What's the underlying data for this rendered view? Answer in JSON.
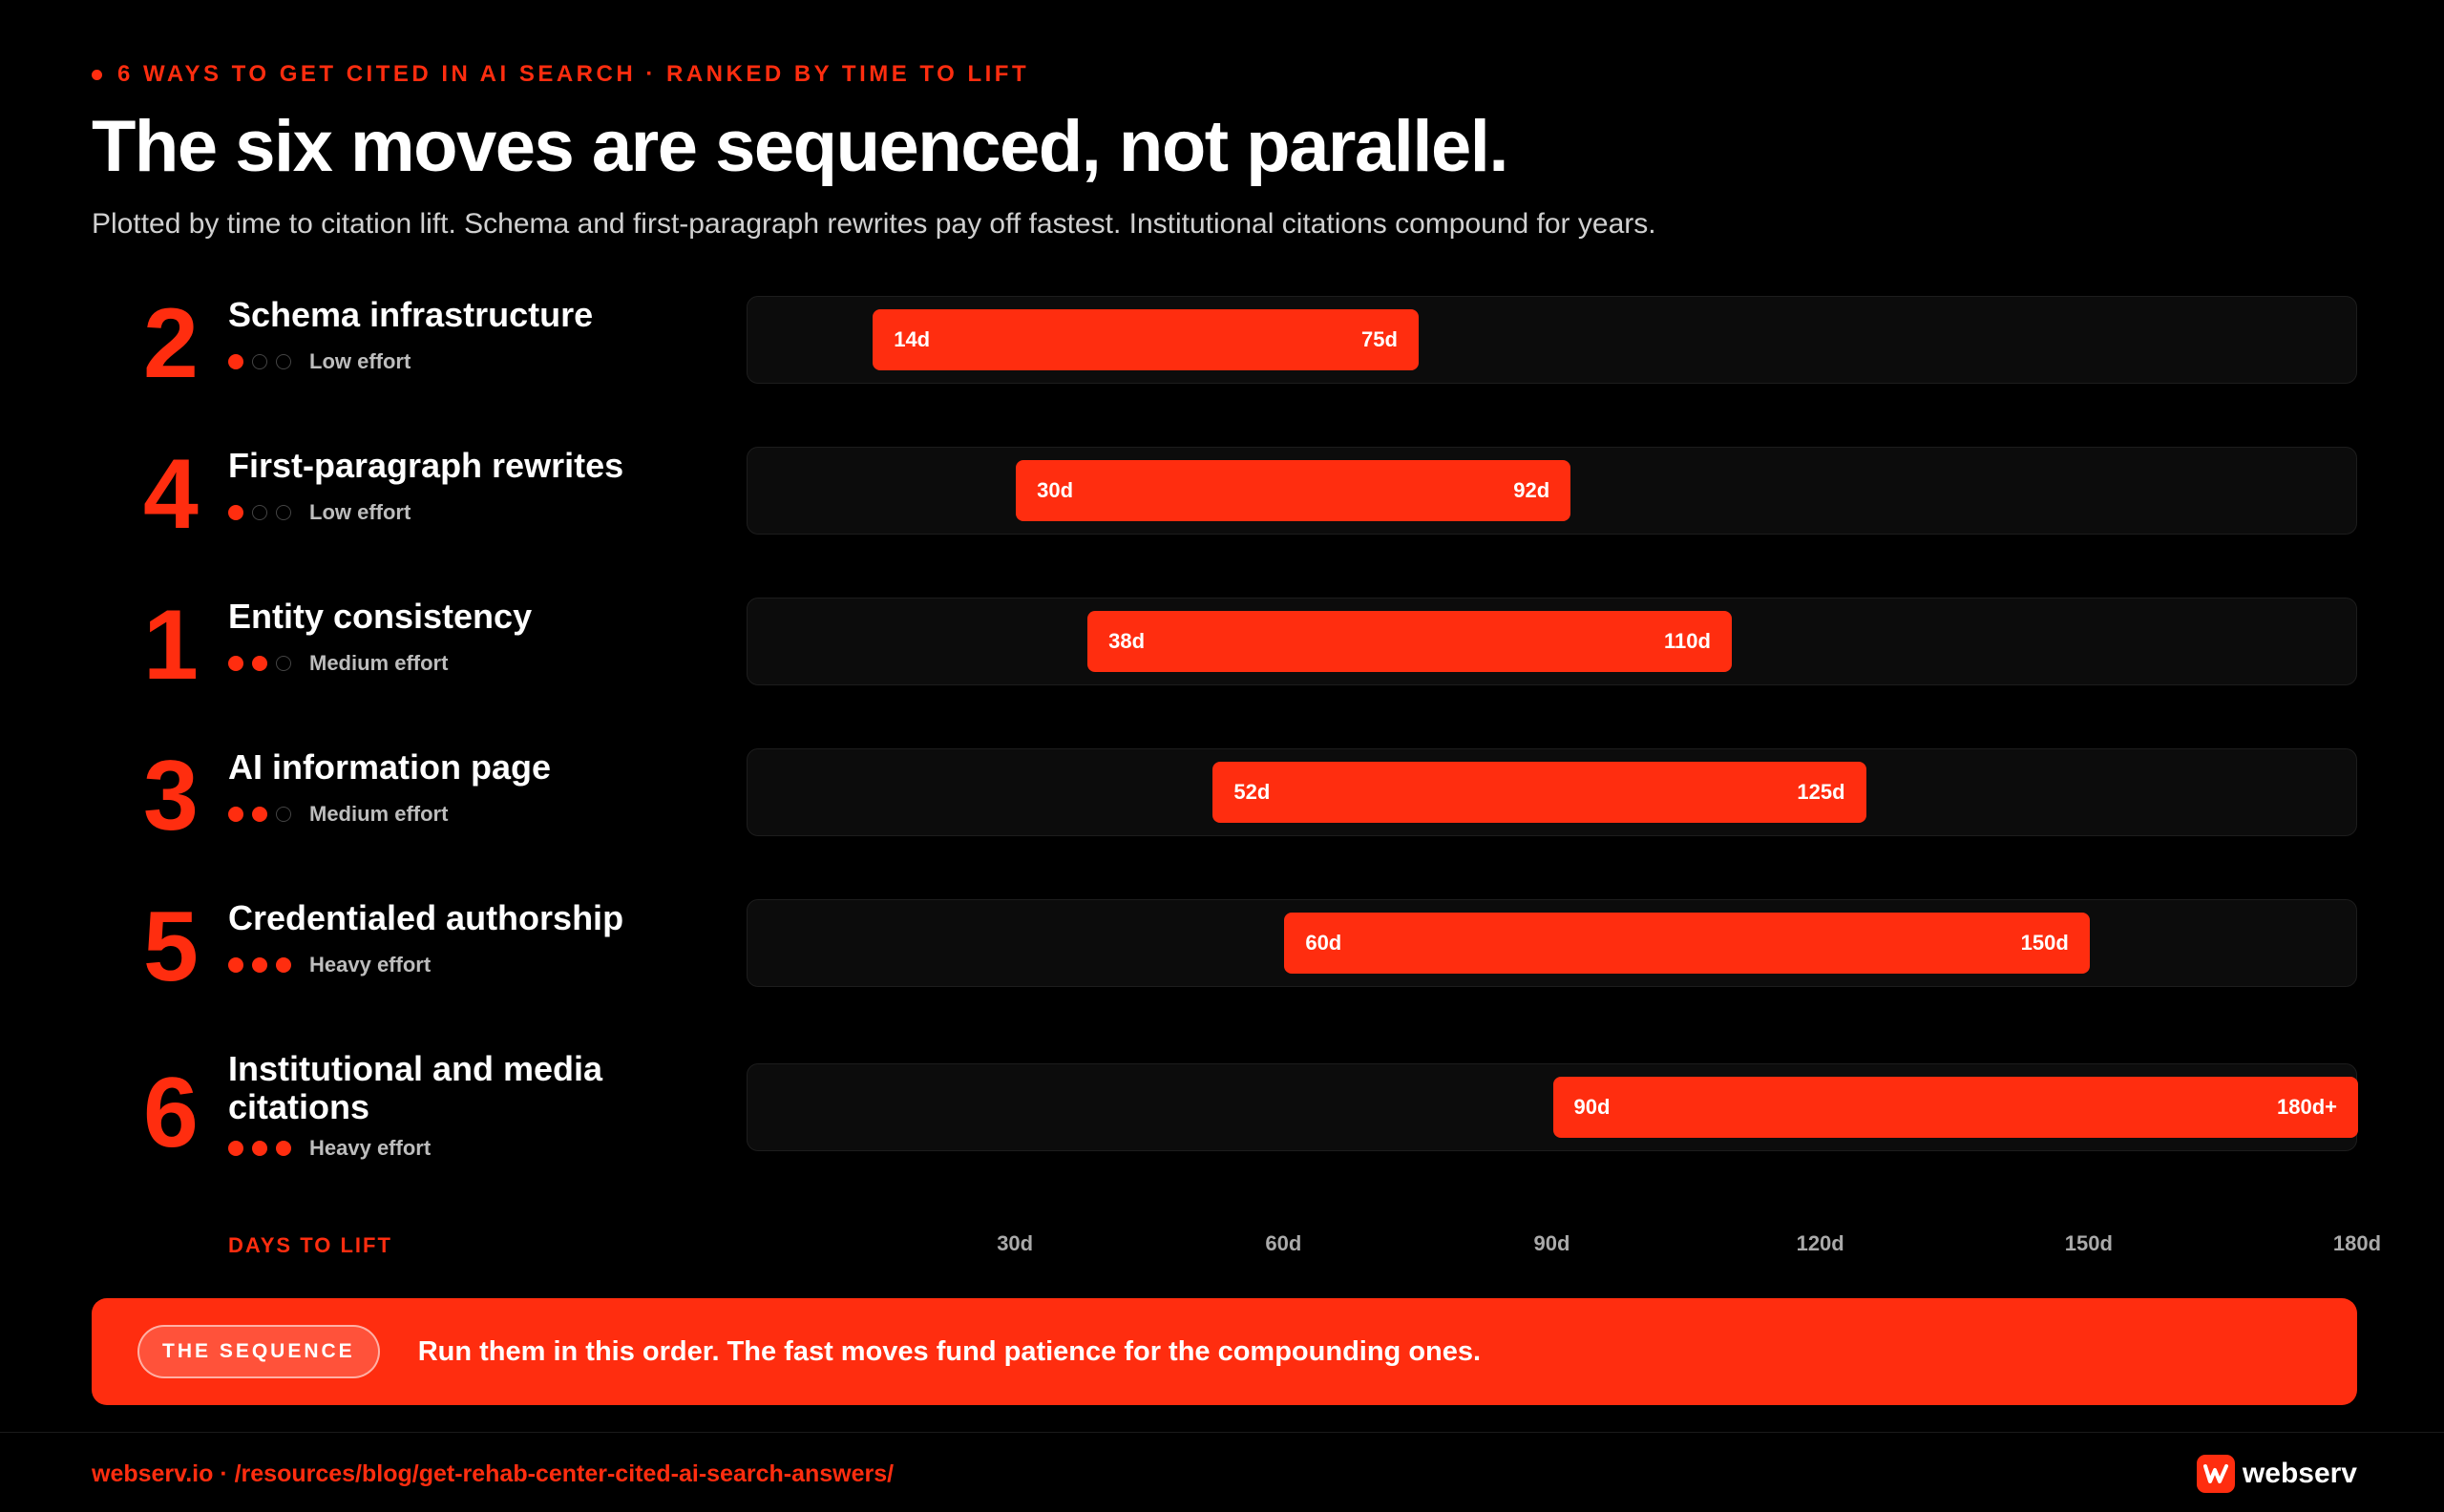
{
  "header": {
    "eyebrow": "6 WAYS TO GET CITED IN AI SEARCH · RANKED BY TIME TO LIFT",
    "title": "The six moves are sequenced, not parallel.",
    "subtitle": "Plotted by time to citation lift. Schema and first-paragraph rewrites pay off fastest. Institutional citations compound for years."
  },
  "chart_data": {
    "type": "bar",
    "orientation": "horizontal-range",
    "xlabel": "DAYS TO LIFT",
    "xlim": [
      0,
      180
    ],
    "x_ticks": [
      "30d",
      "60d",
      "90d",
      "120d",
      "150d",
      "180d"
    ],
    "rows": [
      {
        "rank": "2",
        "name": "Schema infrastructure",
        "effort_level": 1,
        "effort_label": "Low effort",
        "start": 14,
        "end": 75,
        "start_label": "14d",
        "end_label": "75d"
      },
      {
        "rank": "4",
        "name": "First-paragraph rewrites",
        "effort_level": 1,
        "effort_label": "Low effort",
        "start": 30,
        "end": 92,
        "start_label": "30d",
        "end_label": "92d"
      },
      {
        "rank": "1",
        "name": "Entity consistency",
        "effort_level": 2,
        "effort_label": "Medium effort",
        "start": 38,
        "end": 110,
        "start_label": "38d",
        "end_label": "110d"
      },
      {
        "rank": "3",
        "name": "AI information page",
        "effort_level": 2,
        "effort_label": "Medium effort",
        "start": 52,
        "end": 125,
        "start_label": "52d",
        "end_label": "125d"
      },
      {
        "rank": "5",
        "name": "Credentialed authorship",
        "effort_level": 3,
        "effort_label": "Heavy effort",
        "start": 60,
        "end": 150,
        "start_label": "60d",
        "end_label": "150d"
      },
      {
        "rank": "6",
        "name": "Institutional and media citations",
        "effort_level": 3,
        "effort_label": "Heavy effort",
        "start": 90,
        "end": 180,
        "start_label": "90d",
        "end_label": "180d+"
      }
    ]
  },
  "callout": {
    "tag": "THE SEQUENCE",
    "message": "Run them in this order. The fast moves fund patience for the compounding ones."
  },
  "footer": {
    "url": "webserv.io · /resources/blog/get-rehab-center-cited-ai-search-answers/",
    "brand": "webserv",
    "brand_icon": "webserv-logo-icon"
  },
  "colors": {
    "accent": "#ff2d0f",
    "background": "#000000",
    "track": "#0c0c0c"
  }
}
